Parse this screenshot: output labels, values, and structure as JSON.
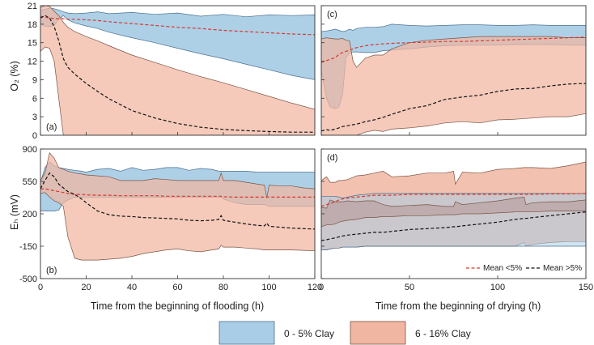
{
  "colors": {
    "clay_low_fill": "#a9cde6",
    "clay_low_edge": "#4a6f8f",
    "clay_high_fill": "#f1b6a1",
    "clay_high_edge": "#7a5545",
    "mean_low": "#d63a2e",
    "mean_high": "#111111"
  },
  "legend": {
    "low_label": "0 - 5% Clay",
    "high_label": "6 - 16% Clay",
    "mean_low_label": "Mean <5%",
    "mean_high_label": "Mean >5%"
  },
  "axes": {
    "o2_label": "O₂ (%)",
    "eh_label": "Eₕ (mV)",
    "flood_xlabel": "Time from the beginning of flooding (h)",
    "dry_xlabel": "Time from the beginning of drying (h)"
  },
  "chart_data": [
    {
      "type": "area",
      "panel": "a",
      "label": "(a)",
      "xlabel": "Time from the beginning of flooding (h)",
      "ylabel": "O₂ (%)",
      "xlim": [
        0,
        120
      ],
      "ylim": [
        0,
        21
      ],
      "xticks": [
        0,
        20,
        40,
        60,
        80,
        100,
        120
      ],
      "yticks": [
        0,
        3,
        6,
        9,
        12,
        15,
        18,
        21
      ],
      "x": [
        0,
        2,
        4,
        6,
        8,
        10,
        12,
        15,
        20,
        25,
        30,
        40,
        50,
        60,
        70,
        80,
        90,
        100,
        110,
        120
      ],
      "series": [
        {
          "name": "0 - 5% Clay upper",
          "values": [
            20.2,
            20.4,
            20.6,
            20.5,
            20.3,
            20.0,
            19.8,
            19.7,
            19.8,
            20.0,
            19.7,
            19.9,
            19.6,
            19.8,
            19.3,
            19.6,
            19.2,
            19.5,
            19.4,
            19.5
          ]
        },
        {
          "name": "0 - 5% Clay lower",
          "values": [
            18.0,
            17.7,
            17.6,
            17.8,
            18.8,
            19.4,
            18.7,
            18.2,
            17.7,
            17.3,
            16.7,
            15.8,
            15.0,
            14.1,
            13.2,
            12.4,
            11.5,
            10.6,
            9.7,
            9.0
          ]
        },
        {
          "name": "6 - 16% Clay upper",
          "values": [
            20.7,
            21.0,
            20.9,
            20.1,
            19.4,
            18.3,
            17.5,
            16.8,
            16.0,
            15.3,
            14.5,
            13.0,
            11.8,
            10.6,
            9.5,
            8.5,
            7.4,
            6.3,
            5.2,
            4.2
          ]
        },
        {
          "name": "6 - 16% Clay lower",
          "values": [
            13.6,
            14.3,
            14.1,
            12.0,
            6.0,
            0.0,
            0.0,
            0.0,
            0.0,
            0.0,
            0.0,
            0.0,
            0.0,
            0.0,
            0.0,
            0.0,
            0.0,
            0.0,
            0.0,
            0.0
          ]
        },
        {
          "name": "Mean <5%",
          "values": [
            19.3,
            19.1,
            19.0,
            18.9,
            18.9,
            18.9,
            18.8,
            18.8,
            18.7,
            18.6,
            18.4,
            18.1,
            17.8,
            17.5,
            17.3,
            17.0,
            16.8,
            16.6,
            16.4,
            16.3
          ]
        },
        {
          "name": "Mean >5%",
          "values": [
            19.0,
            19.4,
            19.0,
            17.6,
            15.3,
            12.4,
            11.0,
            9.9,
            8.4,
            7.1,
            5.9,
            4.0,
            2.8,
            1.9,
            1.3,
            0.95,
            0.75,
            0.6,
            0.5,
            0.5
          ]
        }
      ]
    },
    {
      "type": "area",
      "panel": "b",
      "label": "(b)",
      "xlabel": "Time from the beginning of flooding (h)",
      "ylabel": "Eₕ (mV)",
      "xlim": [
        0,
        120
      ],
      "ylim": [
        -500,
        900
      ],
      "xticks": [
        0,
        20,
        40,
        60,
        80,
        100,
        120
      ],
      "yticks": [
        -500,
        -150,
        200,
        550,
        900
      ],
      "x": [
        0,
        2,
        4,
        6,
        8,
        10,
        12,
        15,
        18,
        20,
        25,
        30,
        35,
        40,
        45,
        50,
        55,
        60,
        65,
        70,
        75,
        78,
        79,
        80,
        85,
        90,
        95,
        98,
        99,
        100,
        105,
        110,
        115,
        120
      ],
      "series": [
        {
          "name": "0 - 5% Clay upper",
          "values": [
            540,
            700,
            760,
            720,
            700,
            690,
            680,
            670,
            660,
            650,
            680,
            690,
            660,
            700,
            670,
            680,
            700,
            700,
            670,
            690,
            680,
            660,
            660,
            660,
            660,
            660,
            650,
            650,
            650,
            650,
            650,
            650,
            650,
            650
          ]
        },
        {
          "name": "0 - 5% Clay lower",
          "values": [
            230,
            230,
            230,
            230,
            240,
            320,
            350,
            380,
            380,
            380,
            380,
            380,
            380,
            380,
            380,
            380,
            380,
            380,
            380,
            380,
            380,
            380,
            380,
            360,
            320,
            300,
            300,
            300,
            290,
            280,
            280,
            280,
            280,
            280
          ]
        },
        {
          "name": "6 - 16% Clay upper",
          "values": [
            560,
            640,
            860,
            800,
            700,
            680,
            660,
            640,
            630,
            620,
            610,
            600,
            560,
            560,
            560,
            580,
            570,
            560,
            560,
            560,
            560,
            560,
            640,
            560,
            560,
            540,
            520,
            510,
            370,
            510,
            500,
            500,
            480,
            470
          ]
        },
        {
          "name": "6 - 16% Clay lower",
          "values": [
            420,
            430,
            380,
            340,
            320,
            280,
            -50,
            -280,
            -300,
            -300,
            -300,
            -290,
            -280,
            -260,
            -230,
            -210,
            -190,
            -180,
            -200,
            -210,
            -190,
            -180,
            -140,
            -160,
            -160,
            -170,
            -180,
            -190,
            -190,
            -190,
            -190,
            -190,
            -195,
            -200
          ]
        },
        {
          "name": "Mean <5%",
          "values": [
            470,
            470,
            460,
            450,
            440,
            430,
            420,
            410,
            410,
            405,
            400,
            400,
            395,
            395,
            395,
            395,
            390,
            390,
            390,
            390,
            390,
            390,
            390,
            385,
            380,
            380,
            380,
            380,
            380,
            380,
            380,
            380,
            380,
            380
          ]
        },
        {
          "name": "Mean >5%",
          "values": [
            470,
            560,
            640,
            600,
            520,
            480,
            440,
            410,
            360,
            320,
            230,
            190,
            175,
            170,
            160,
            155,
            150,
            145,
            130,
            125,
            130,
            140,
            180,
            130,
            110,
            90,
            75,
            70,
            100,
            65,
            55,
            45,
            40,
            35
          ]
        }
      ]
    },
    {
      "type": "area",
      "panel": "c",
      "label": "(c)",
      "xlabel": "Time from the beginning of drying (h)",
      "ylabel": "O₂ (%)",
      "xlim": [
        0,
        150
      ],
      "ylim": [
        0,
        21
      ],
      "xticks": [
        0,
        50,
        100,
        150
      ],
      "yticks": [
        0,
        3,
        6,
        9,
        12,
        15,
        18,
        21
      ],
      "x": [
        0,
        3,
        5,
        8,
        10,
        12,
        14,
        16,
        18,
        20,
        25,
        30,
        35,
        40,
        50,
        60,
        70,
        80,
        90,
        100,
        110,
        120,
        130,
        140,
        150
      ],
      "series": [
        {
          "name": "0 - 5% Clay upper",
          "values": [
            16.8,
            16.9,
            17.0,
            17.2,
            17.0,
            16.8,
            16.9,
            17.2,
            17.0,
            17.3,
            17.5,
            17.5,
            17.6,
            18.0,
            17.8,
            17.7,
            17.8,
            17.9,
            17.9,
            17.8,
            17.8,
            17.9,
            17.8,
            17.8,
            17.8
          ]
        },
        {
          "name": "0 - 5% Clay lower",
          "values": [
            10.5,
            6.0,
            4.6,
            4.3,
            4.6,
            6.5,
            12.6,
            13.3,
            13.5,
            13.5,
            13.4,
            13.4,
            13.7,
            13.8,
            14.0,
            14.3,
            14.5,
            14.6,
            14.6,
            14.6,
            14.7,
            14.7,
            14.7,
            14.6,
            14.6
          ]
        },
        {
          "name": "6 - 16% Clay upper",
          "values": [
            15.6,
            15.8,
            15.7,
            15.6,
            15.6,
            15.7,
            15.4,
            15.3,
            12.0,
            11.0,
            12.5,
            13.0,
            13.0,
            14.0,
            15.0,
            15.4,
            15.6,
            15.8,
            16.0,
            16.0,
            16.0,
            16.0,
            16.0,
            15.8,
            15.8
          ]
        },
        {
          "name": "6 - 16% Clay lower",
          "values": [
            0.0,
            0.0,
            0.0,
            0.0,
            0.0,
            0.0,
            0.0,
            0.0,
            0.0,
            0.0,
            0.5,
            0.8,
            0.6,
            1.0,
            1.2,
            1.5,
            2.0,
            2.2,
            2.0,
            2.5,
            2.6,
            2.8,
            3.0,
            3.0,
            3.5
          ]
        },
        {
          "name": "Mean <5%",
          "values": [
            11.8,
            12.1,
            12.3,
            12.6,
            13.1,
            13.4,
            13.6,
            13.8,
            14.0,
            14.2,
            14.5,
            14.7,
            14.8,
            14.9,
            15.0,
            15.1,
            15.2,
            15.2,
            15.3,
            15.4,
            15.5,
            15.6,
            15.7,
            15.8,
            15.9
          ]
        },
        {
          "name": "Mean >5%",
          "values": [
            0.7,
            0.9,
            0.8,
            1.0,
            1.2,
            1.4,
            1.5,
            1.6,
            1.7,
            1.8,
            2.2,
            2.5,
            2.9,
            3.4,
            4.3,
            4.8,
            5.8,
            6.2,
            6.5,
            7.1,
            7.5,
            7.6,
            8.0,
            8.3,
            8.4
          ]
        }
      ]
    },
    {
      "type": "area",
      "panel": "d",
      "label": "(d)",
      "xlabel": "Time from the beginning of drying (h)",
      "ylabel": "Eₕ (mV)",
      "xlim": [
        0,
        150
      ],
      "ylim": [
        -500,
        900
      ],
      "xticks": [
        0,
        50,
        100,
        150
      ],
      "yticks": [
        -500,
        -150,
        200,
        550,
        900
      ],
      "x": [
        0,
        3,
        5,
        8,
        10,
        12,
        15,
        20,
        25,
        30,
        35,
        40,
        50,
        60,
        70,
        75,
        76,
        80,
        90,
        100,
        110,
        115,
        116,
        120,
        130,
        140,
        150
      ],
      "series": [
        {
          "name": "0 - 5% Clay upper",
          "values": [
            390,
            390,
            390,
            390,
            380,
            370,
            380,
            400,
            410,
            420,
            420,
            420,
            420,
            420,
            420,
            420,
            420,
            420,
            420,
            420,
            420,
            420,
            420,
            420,
            420,
            420,
            420
          ]
        },
        {
          "name": "0 - 5% Clay lower",
          "values": [
            -190,
            -190,
            -180,
            -170,
            -170,
            -160,
            -160,
            -160,
            -150,
            -150,
            -150,
            -150,
            -150,
            -150,
            -150,
            -150,
            -150,
            -150,
            -150,
            -150,
            -150,
            -150,
            -150,
            -150,
            -150,
            -150,
            -150
          ]
        },
        {
          "name": "6 - 16% Clay upper",
          "values": [
            560,
            600,
            540,
            540,
            560,
            560,
            570,
            610,
            620,
            640,
            660,
            600,
            610,
            640,
            640,
            660,
            520,
            650,
            640,
            680,
            690,
            700,
            700,
            700,
            690,
            720,
            760
          ]
        },
        {
          "name": "6 - 16% Clay lower",
          "values": [
            -190,
            -190,
            -180,
            -170,
            -170,
            -160,
            -160,
            -160,
            -150,
            -150,
            -150,
            -150,
            -150,
            -150,
            -150,
            -150,
            -150,
            -150,
            -150,
            -150,
            -150,
            -110,
            -150,
            -130,
            -110,
            -100,
            -100
          ]
        },
        {
          "name": "6 - 16% Clay band upper",
          "values": [
            270,
            260,
            350,
            330,
            330,
            330,
            340,
            330,
            340,
            340,
            300,
            280,
            290,
            300,
            280,
            280,
            330,
            300,
            320,
            340,
            370,
            380,
            300,
            320,
            330,
            330,
            350
          ]
        },
        {
          "name": "6 - 16% Clay band lower",
          "values": [
            60,
            80,
            80,
            90,
            110,
            120,
            130,
            140,
            160,
            160,
            170,
            170,
            180,
            180,
            190,
            190,
            190,
            200,
            200,
            210,
            220,
            220,
            220,
            220,
            230,
            230,
            230
          ]
        },
        {
          "name": "Mean <5%",
          "values": [
            280,
            300,
            310,
            330,
            350,
            360,
            370,
            380,
            390,
            400,
            400,
            400,
            410,
            410,
            410,
            410,
            410,
            410,
            410,
            410,
            410,
            410,
            410,
            410,
            415,
            415,
            420
          ]
        },
        {
          "name": "Mean >5%",
          "values": [
            -90,
            -80,
            -70,
            -60,
            -50,
            -40,
            -30,
            -20,
            -10,
            0,
            0,
            10,
            30,
            40,
            50,
            60,
            60,
            70,
            90,
            110,
            140,
            150,
            150,
            160,
            180,
            200,
            220
          ]
        }
      ]
    }
  ]
}
